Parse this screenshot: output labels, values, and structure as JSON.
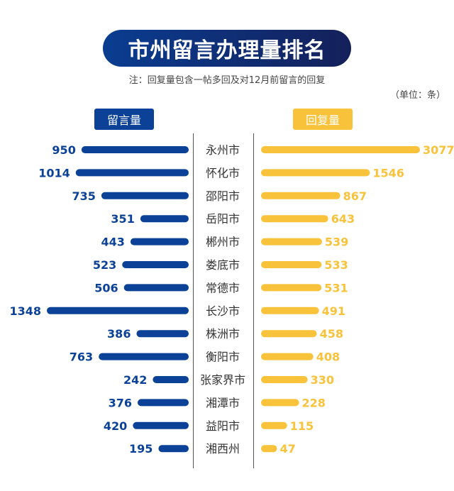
{
  "title": "市州留言办理量排名",
  "note": "注：回复量包含一帖多回及对12月前留言的回复",
  "unit": "（单位：条）",
  "colors": {
    "left": "#0b4297",
    "right": "#f8c23a",
    "title_bg": "#0a3d91"
  },
  "chart_data": {
    "type": "bar",
    "orientation": "horizontal-butterfly",
    "categories": [
      "永州市",
      "怀化市",
      "邵阳市",
      "岳阳市",
      "郴州市",
      "娄底市",
      "常德市",
      "长沙市",
      "株洲市",
      "衡阳市",
      "张家界市",
      "湘潭市",
      "益阳市",
      "湘西州"
    ],
    "series": [
      {
        "name": "留言量",
        "values": [
          950,
          1014,
          735,
          351,
          443,
          523,
          506,
          1348,
          386,
          763,
          242,
          376,
          420,
          195
        ]
      },
      {
        "name": "回复量",
        "values": [
          3077,
          1546,
          867,
          643,
          539,
          533,
          531,
          491,
          458,
          408,
          330,
          228,
          115,
          47
        ]
      }
    ]
  }
}
